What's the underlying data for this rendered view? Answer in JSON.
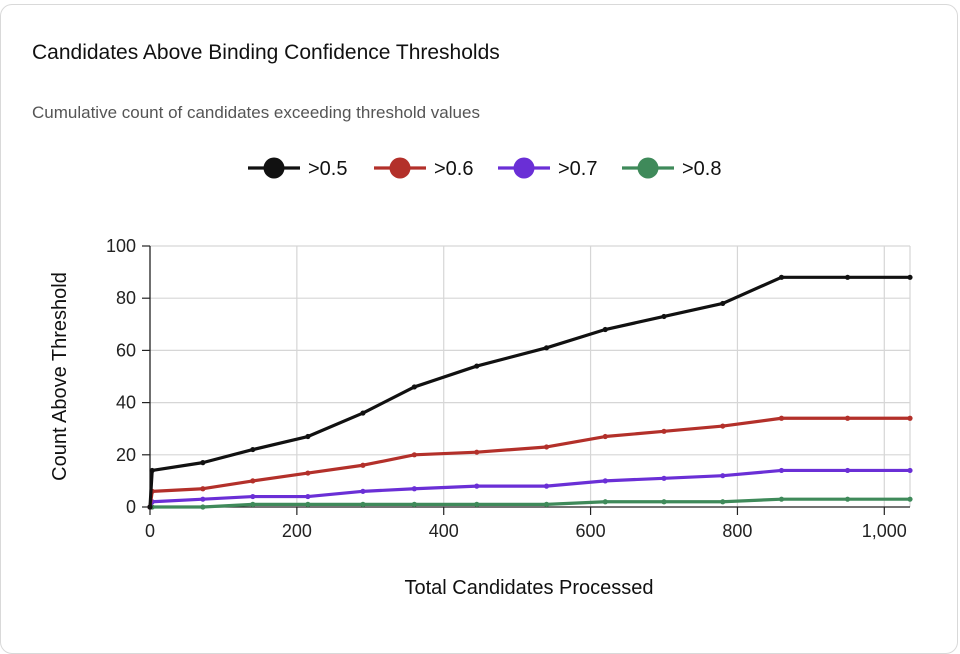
{
  "card": {
    "title": "Candidates Above Binding Confidence Thresholds",
    "subtitle": "Cumulative count of candidates exceeding threshold values"
  },
  "chart_data": {
    "type": "line",
    "title": "Candidates Above Binding Confidence Thresholds",
    "subtitle": "Cumulative count of candidates exceeding threshold values",
    "xlabel": "Total Candidates Processed",
    "ylabel": "Count Above Threshold",
    "xlim": [
      0,
      1035
    ],
    "ylim": [
      0,
      100
    ],
    "x_ticks": [
      0,
      200,
      400,
      600,
      800,
      1000
    ],
    "x_tick_labels": [
      "0",
      "200",
      "400",
      "600",
      "800",
      "1,000"
    ],
    "y_ticks": [
      0,
      20,
      40,
      60,
      80,
      100
    ],
    "y_tick_labels": [
      "0",
      "20",
      "40",
      "60",
      "80",
      "100"
    ],
    "grid": true,
    "legend_position": "top-center",
    "x": [
      0,
      3,
      72,
      140,
      215,
      290,
      360,
      445,
      540,
      620,
      700,
      780,
      860,
      950,
      1035
    ],
    "series": [
      {
        "name": ">0.5",
        "color": "#111111",
        "values": [
          0,
          14,
          17,
          22,
          27,
          36,
          46,
          54,
          61,
          68,
          73,
          78,
          88,
          88,
          88
        ]
      },
      {
        "name": ">0.6",
        "color": "#b3302a",
        "values": [
          0,
          6,
          7,
          10,
          13,
          16,
          20,
          21,
          23,
          27,
          29,
          31,
          34,
          34,
          34
        ]
      },
      {
        "name": ">0.7",
        "color": "#6a2fd6",
        "values": [
          0,
          2,
          3,
          4,
          4,
          6,
          7,
          8,
          8,
          10,
          11,
          12,
          14,
          14,
          14
        ]
      },
      {
        "name": ">0.8",
        "color": "#3f8a5a",
        "values": [
          0,
          0,
          0,
          1,
          1,
          1,
          1,
          1,
          1,
          2,
          2,
          2,
          3,
          3,
          3
        ]
      }
    ]
  }
}
